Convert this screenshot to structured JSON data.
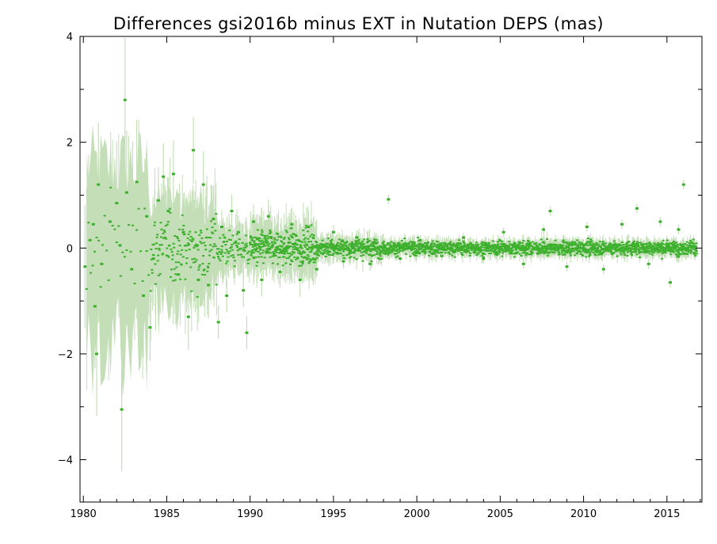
{
  "chart_data": {
    "type": "scatter",
    "title": "Differences gsi2016b minus EXT in Nutation DEPS (mas)",
    "xlabel": "",
    "ylabel": "",
    "xlim": [
      1979.8,
      2017.1
    ],
    "ylim": [
      -4.8,
      4.0
    ],
    "x_ticks": [
      1980,
      1985,
      1990,
      1995,
      2000,
      2005,
      2010,
      2015
    ],
    "y_ticks": [
      4,
      2,
      0,
      -2,
      -4
    ],
    "y_tick_labels": [
      "4",
      "2",
      "0",
      "−2",
      "−4"
    ],
    "grid": false,
    "legend": "none",
    "colors": {
      "points": "#3cb02c",
      "error_band": "#c4dfb8",
      "axes": "#000000",
      "background": "#ffffff"
    },
    "series": [
      {
        "points": [
          [
            1980.1,
            -0.35
          ],
          [
            1980.4,
            0.15
          ],
          [
            1980.6,
            0.45
          ],
          [
            1980.7,
            -1.1
          ],
          [
            1980.8,
            -2.0
          ],
          [
            1980.9,
            1.2
          ],
          [
            1981.1,
            -0.3
          ],
          [
            1981.6,
            0.5
          ],
          [
            1982.0,
            0.85
          ],
          [
            1982.2,
            0.05
          ],
          [
            1982.3,
            -3.05
          ],
          [
            1982.5,
            2.8
          ],
          [
            1982.6,
            1.05
          ],
          [
            1982.9,
            -0.4
          ],
          [
            1983.2,
            1.25
          ],
          [
            1983.6,
            -0.9
          ],
          [
            1983.8,
            0.6
          ],
          [
            1984.0,
            -1.5
          ],
          [
            1984.2,
            -0.2
          ],
          [
            1984.5,
            0.9
          ],
          [
            1984.8,
            1.35
          ],
          [
            1985.1,
            0.7
          ],
          [
            1985.4,
            1.4
          ],
          [
            1985.7,
            -0.5
          ],
          [
            1986.0,
            0.3
          ],
          [
            1986.3,
            -1.3
          ],
          [
            1986.6,
            1.85
          ],
          [
            1986.9,
            -0.6
          ],
          [
            1987.2,
            1.2
          ],
          [
            1987.5,
            -0.7
          ],
          [
            1987.8,
            0.55
          ],
          [
            1988.1,
            -1.4
          ],
          [
            1988.3,
            0.4
          ],
          [
            1988.6,
            -0.9
          ],
          [
            1988.9,
            0.7
          ],
          [
            1989.3,
            0.3
          ],
          [
            1989.6,
            -0.8
          ],
          [
            1989.8,
            -1.6
          ],
          [
            1990.2,
            0.5
          ],
          [
            1990.7,
            -0.6
          ],
          [
            1991.1,
            0.6
          ],
          [
            1991.8,
            -0.45
          ],
          [
            1992.5,
            0.45
          ],
          [
            1993.0,
            -0.6
          ],
          [
            1993.5,
            0.4
          ],
          [
            1994.0,
            -0.4
          ],
          [
            1995.0,
            0.3
          ],
          [
            1995.6,
            -0.25
          ],
          [
            1996.4,
            0.2
          ],
          [
            1997.2,
            -0.3
          ],
          [
            1998.3,
            0.92
          ],
          [
            1999.0,
            -0.2
          ],
          [
            2000.2,
            0.15
          ],
          [
            2001.5,
            -0.15
          ],
          [
            2002.8,
            0.2
          ],
          [
            2004.0,
            -0.2
          ],
          [
            2005.2,
            0.3
          ],
          [
            2006.4,
            -0.3
          ],
          [
            2007.6,
            0.35
          ],
          [
            2008.0,
            0.7
          ],
          [
            2009.0,
            -0.35
          ],
          [
            2010.2,
            0.4
          ],
          [
            2011.2,
            -0.4
          ],
          [
            2012.3,
            0.45
          ],
          [
            2013.2,
            0.75
          ],
          [
            2013.9,
            -0.3
          ],
          [
            2014.6,
            0.5
          ],
          [
            2015.2,
            -0.65
          ],
          [
            2015.7,
            0.35
          ],
          [
            2016.0,
            1.2
          ],
          [
            2016.5,
            0.1
          ]
        ]
      }
    ]
  }
}
